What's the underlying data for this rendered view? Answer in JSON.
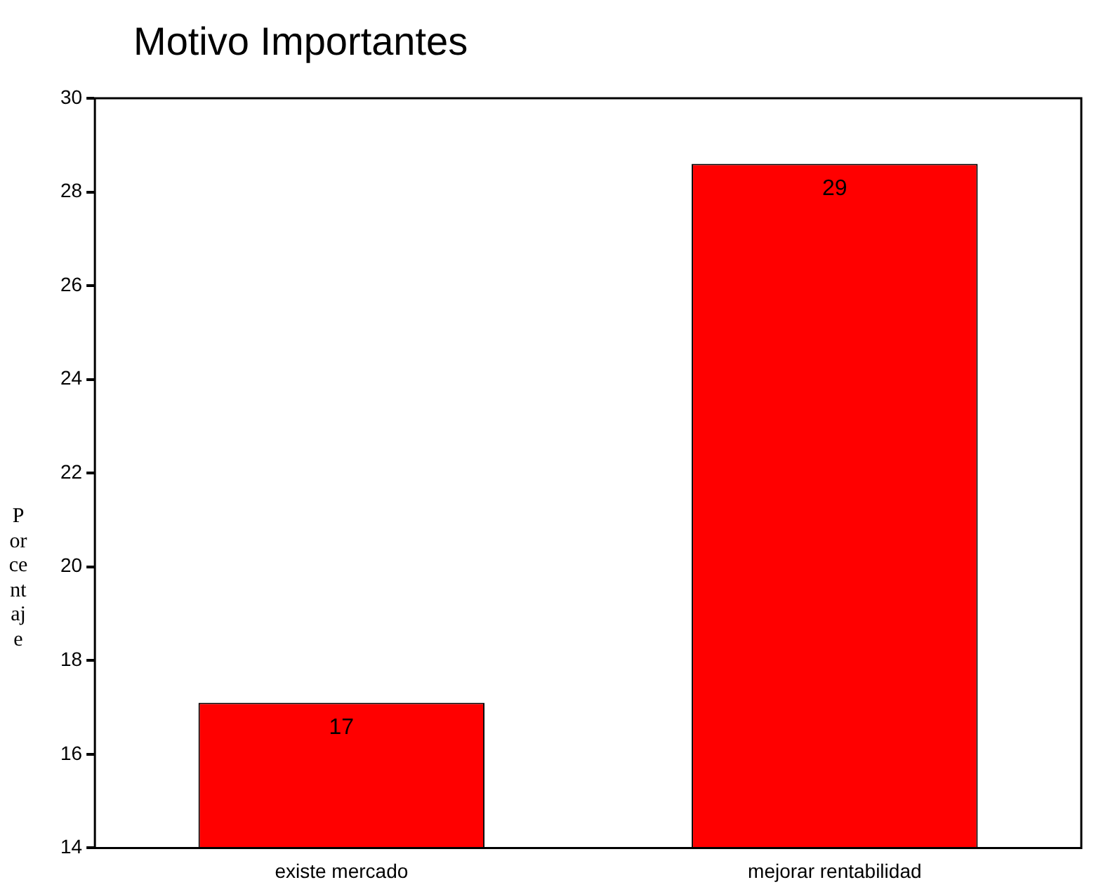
{
  "chart_data": {
    "type": "bar",
    "title": "Motivo Importantes",
    "ylabel": "Porcentaje",
    "categories": [
      "existe mercado",
      "mejorar rentabilidad"
    ],
    "values": [
      17.1,
      28.6
    ],
    "value_labels": [
      "17",
      "29"
    ],
    "color": "#ff0000",
    "ylim": [
      14,
      30
    ],
    "yticks": [
      14,
      16,
      18,
      20,
      22,
      24,
      26,
      28,
      30
    ],
    "grid": false,
    "legend": false
  }
}
